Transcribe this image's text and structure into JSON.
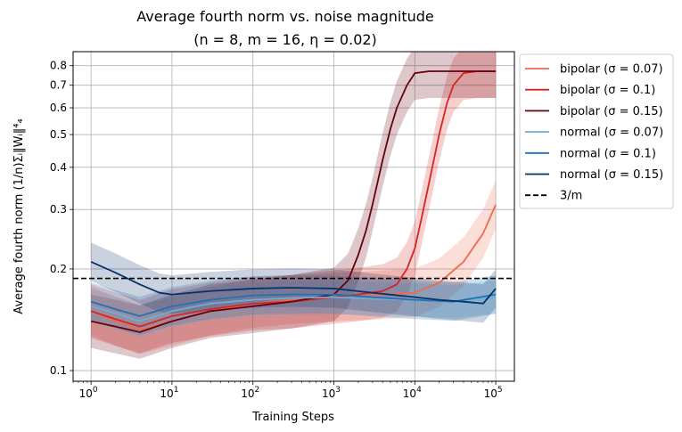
{
  "chart_data": {
    "type": "line",
    "title": "Average fourth norm vs. noise magnitude",
    "subtitle": "(n = 8, m = 16, η = 0.02)",
    "xlabel": "Training Steps",
    "ylabel": "Average fourth norm (1/n)Σᵢ‖Wᵢ‖⁴₄",
    "xscale": "log",
    "yscale": "log",
    "xlim": [
      0.6,
      170000
    ],
    "ylim": [
      0.093,
      0.88
    ],
    "x_ticks": [
      {
        "value": 1,
        "base": "10",
        "exp": "0"
      },
      {
        "value": 10,
        "base": "10",
        "exp": "1"
      },
      {
        "value": 100,
        "base": "10",
        "exp": "2"
      },
      {
        "value": 1000,
        "base": "10",
        "exp": "3"
      },
      {
        "value": 10000,
        "base": "10",
        "exp": "4"
      },
      {
        "value": 100000,
        "base": "10",
        "exp": "5"
      }
    ],
    "y_ticks": [
      {
        "value": 0.1,
        "label": "0.1"
      },
      {
        "value": 0.2,
        "label": "0.2"
      },
      {
        "value": 0.3,
        "label": "0.3"
      },
      {
        "value": 0.4,
        "label": "0.4"
      },
      {
        "value": 0.5,
        "label": "0.5"
      },
      {
        "value": 0.6,
        "label": "0.6"
      },
      {
        "value": 0.7,
        "label": "0.7"
      },
      {
        "value": 0.8,
        "label": "0.8"
      }
    ],
    "grid": true,
    "legend_position": "outside-right-top",
    "reference_line": {
      "name": "3/m",
      "value": 0.1875,
      "color": "#000000",
      "style": "dashed"
    },
    "series": [
      {
        "name": "bipolar (σ = 0.07)",
        "color": "#ee6a4c",
        "band": 0.18,
        "x": [
          1,
          2,
          4,
          10,
          30,
          100,
          300,
          1000,
          3000,
          10000,
          20000,
          40000,
          70000,
          100000
        ],
        "y": [
          0.15,
          0.14,
          0.132,
          0.14,
          0.15,
          0.158,
          0.162,
          0.165,
          0.167,
          0.17,
          0.182,
          0.21,
          0.255,
          0.31
        ]
      },
      {
        "name": "bipolar (σ = 0.1)",
        "color": "#d62423",
        "band": 0.2,
        "x": [
          1,
          2,
          4,
          10,
          30,
          100,
          300,
          1000,
          2000,
          4000,
          6000,
          8000,
          10000,
          12000,
          15000,
          20000,
          25000,
          30000,
          40000,
          60000,
          100000
        ],
        "y": [
          0.15,
          0.142,
          0.135,
          0.145,
          0.152,
          0.158,
          0.16,
          0.165,
          0.168,
          0.172,
          0.18,
          0.2,
          0.23,
          0.28,
          0.36,
          0.5,
          0.62,
          0.7,
          0.76,
          0.77,
          0.77
        ]
      },
      {
        "name": "bipolar (σ = 0.15)",
        "color": "#67000d",
        "band": 0.2,
        "x": [
          1,
          2,
          4,
          10,
          30,
          100,
          300,
          1000,
          1500,
          2000,
          2500,
          3000,
          4000,
          5000,
          6000,
          8000,
          10000,
          15000,
          30000,
          100000
        ],
        "y": [
          0.14,
          0.135,
          0.13,
          0.14,
          0.15,
          0.155,
          0.16,
          0.168,
          0.185,
          0.22,
          0.26,
          0.31,
          0.42,
          0.52,
          0.6,
          0.7,
          0.76,
          0.77,
          0.77,
          0.77
        ]
      },
      {
        "name": "normal (σ = 0.07)",
        "color": "#6baed6",
        "band": 0.12,
        "x": [
          1,
          2,
          4,
          10,
          30,
          100,
          300,
          1000,
          3000,
          10000,
          30000,
          100000
        ],
        "y": [
          0.155,
          0.148,
          0.14,
          0.15,
          0.158,
          0.162,
          0.164,
          0.165,
          0.163,
          0.162,
          0.16,
          0.165
        ]
      },
      {
        "name": "normal (σ = 0.1)",
        "color": "#2171b5",
        "band": 0.14,
        "x": [
          1,
          2,
          4,
          10,
          30,
          100,
          300,
          1000,
          3000,
          10000,
          30000,
          100000
        ],
        "y": [
          0.16,
          0.152,
          0.145,
          0.155,
          0.162,
          0.167,
          0.168,
          0.168,
          0.165,
          0.162,
          0.16,
          0.168
        ]
      },
      {
        "name": "normal (σ = 0.15)",
        "color": "#08306b",
        "band": 0.14,
        "x": [
          1,
          2,
          4,
          7,
          10,
          30,
          100,
          300,
          1000,
          3000,
          10000,
          20000,
          40000,
          70000,
          100000
        ],
        "y": [
          0.21,
          0.195,
          0.18,
          0.17,
          0.168,
          0.172,
          0.175,
          0.176,
          0.175,
          0.17,
          0.165,
          0.162,
          0.16,
          0.158,
          0.175
        ]
      }
    ]
  }
}
